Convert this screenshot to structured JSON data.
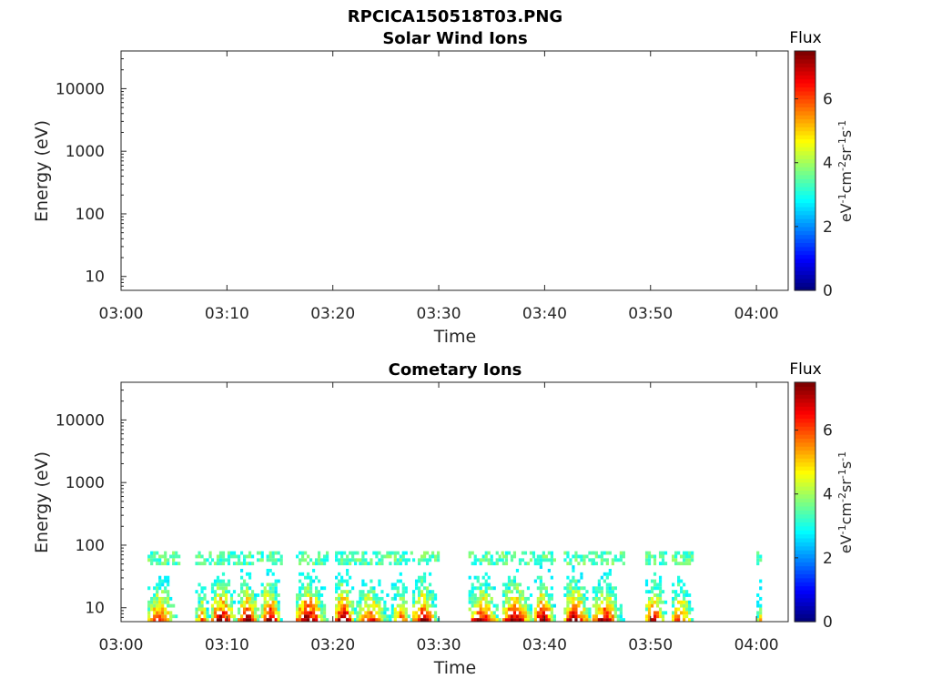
{
  "figure_title": "RPCICA150518T03.PNG",
  "chart_data": [
    {
      "type": "heatmap",
      "title": "Solar Wind Ions",
      "xlabel": "Time",
      "ylabel": "Energy (eV)",
      "x_tick_labels": [
        "03:00",
        "03:10",
        "03:20",
        "03:30",
        "03:40",
        "03:50",
        "04:00"
      ],
      "x_range_minutes": [
        0,
        63
      ],
      "y_scale": "log",
      "y_tick_labels": [
        "10",
        "100",
        "1000",
        "10000"
      ],
      "y_ticks": [
        10,
        100,
        1000,
        10000
      ],
      "y_range": [
        6,
        40000
      ],
      "colorbar": {
        "label": "Flux",
        "units": "eV^-1 cm^-2 sr^-1 s^-1",
        "range": [
          0,
          7.5
        ],
        "ticks": [
          0,
          2,
          4,
          6
        ],
        "colormap": "jet"
      },
      "data": []
    },
    {
      "type": "heatmap",
      "title": "Cometary Ions",
      "xlabel": "Time",
      "ylabel": "Energy (eV)",
      "x_tick_labels": [
        "03:00",
        "03:10",
        "03:20",
        "03:30",
        "03:40",
        "03:50",
        "04:00"
      ],
      "x_range_minutes": [
        0,
        63
      ],
      "y_scale": "log",
      "y_tick_labels": [
        "10",
        "100",
        "1000",
        "10000"
      ],
      "y_ticks": [
        10,
        100,
        1000,
        10000
      ],
      "y_range": [
        6,
        40000
      ],
      "colorbar": {
        "label": "Flux",
        "units": "eV^-1 cm^-2 sr^-1 s^-1",
        "range": [
          0,
          7.5
        ],
        "ticks": [
          0,
          2,
          4,
          6
        ],
        "colormap": "jet"
      },
      "energy_range_of_signal_eV": [
        6,
        80
      ],
      "bursts": [
        {
          "start_min": 2.5,
          "end_min": 5.5,
          "peak_flux": 6.0
        },
        {
          "start_min": 7.0,
          "end_min": 8.5,
          "peak_flux": 5.0
        },
        {
          "start_min": 8.5,
          "end_min": 11.0,
          "peak_flux": 7.0
        },
        {
          "start_min": 11.0,
          "end_min": 13.2,
          "peak_flux": 6.8
        },
        {
          "start_min": 13.2,
          "end_min": 15.2,
          "peak_flux": 7.2
        },
        {
          "start_min": 16.5,
          "end_min": 19.5,
          "peak_flux": 7.3
        },
        {
          "start_min": 20.2,
          "end_min": 22.2,
          "peak_flux": 7.3
        },
        {
          "start_min": 22.2,
          "end_min": 25.5,
          "peak_flux": 6.0
        },
        {
          "start_min": 25.5,
          "end_min": 27.5,
          "peak_flux": 5.5
        },
        {
          "start_min": 27.5,
          "end_min": 30.0,
          "peak_flux": 6.8
        },
        {
          "start_min": 32.8,
          "end_min": 36.0,
          "peak_flux": 6.5
        },
        {
          "start_min": 36.0,
          "end_min": 39.0,
          "peak_flux": 7.0
        },
        {
          "start_min": 39.0,
          "end_min": 41.0,
          "peak_flux": 7.3
        },
        {
          "start_min": 41.8,
          "end_min": 44.5,
          "peak_flux": 7.0
        },
        {
          "start_min": 44.5,
          "end_min": 47.5,
          "peak_flux": 6.5
        },
        {
          "start_min": 49.5,
          "end_min": 51.5,
          "peak_flux": 6.8
        },
        {
          "start_min": 52.0,
          "end_min": 54.0,
          "peak_flux": 6.0
        },
        {
          "start_min": 60.0,
          "end_min": 60.5,
          "peak_flux": 4.5
        }
      ]
    }
  ]
}
